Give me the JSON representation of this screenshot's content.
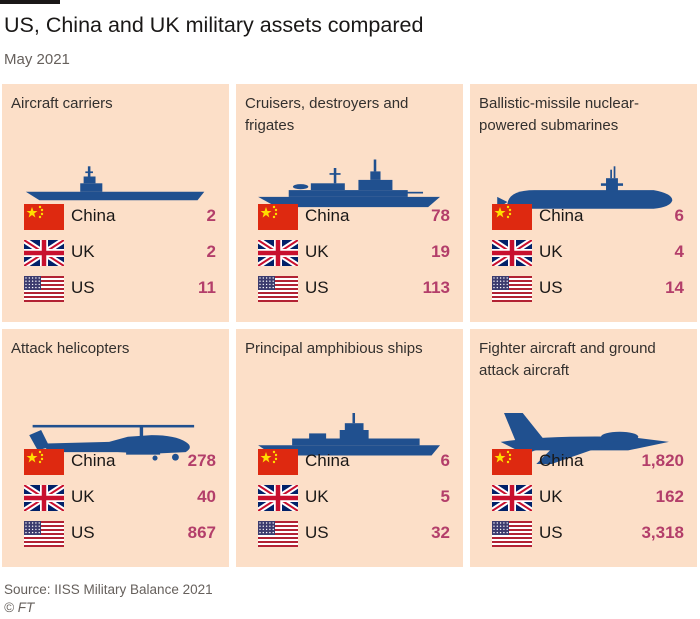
{
  "title": "US, China and UK military assets compared",
  "subtitle": "May 2021",
  "source": "Source: IISS Military Balance 2021",
  "copyright": "© FT",
  "colors": {
    "panel_bg": "#fcdfc8",
    "value": "#b33e6a",
    "silhouette": "#20508f"
  },
  "chart_data": {
    "type": "table",
    "countries": [
      "China",
      "UK",
      "US"
    ],
    "categories": [
      {
        "title": "Aircraft carriers",
        "icon": "aircraft-carrier-icon",
        "values": [
          "2",
          "2",
          "11"
        ]
      },
      {
        "title": "Cruisers, destroyers and frigates",
        "icon": "destroyer-icon",
        "values": [
          "78",
          "19",
          "113"
        ]
      },
      {
        "title": "Ballistic-missile nuclear-powered submarines",
        "icon": "submarine-icon",
        "values": [
          "6",
          "4",
          "14"
        ]
      },
      {
        "title": "Attack helicopters",
        "icon": "helicopter-icon",
        "values": [
          "278",
          "40",
          "867"
        ]
      },
      {
        "title": "Principal amphibious ships",
        "icon": "amphibious-ship-icon",
        "values": [
          "6",
          "5",
          "32"
        ]
      },
      {
        "title": "Fighter aircraft and ground attack aircraft",
        "icon": "fighter-jet-icon",
        "values": [
          "1,820",
          "162",
          "3,318"
        ]
      }
    ]
  }
}
